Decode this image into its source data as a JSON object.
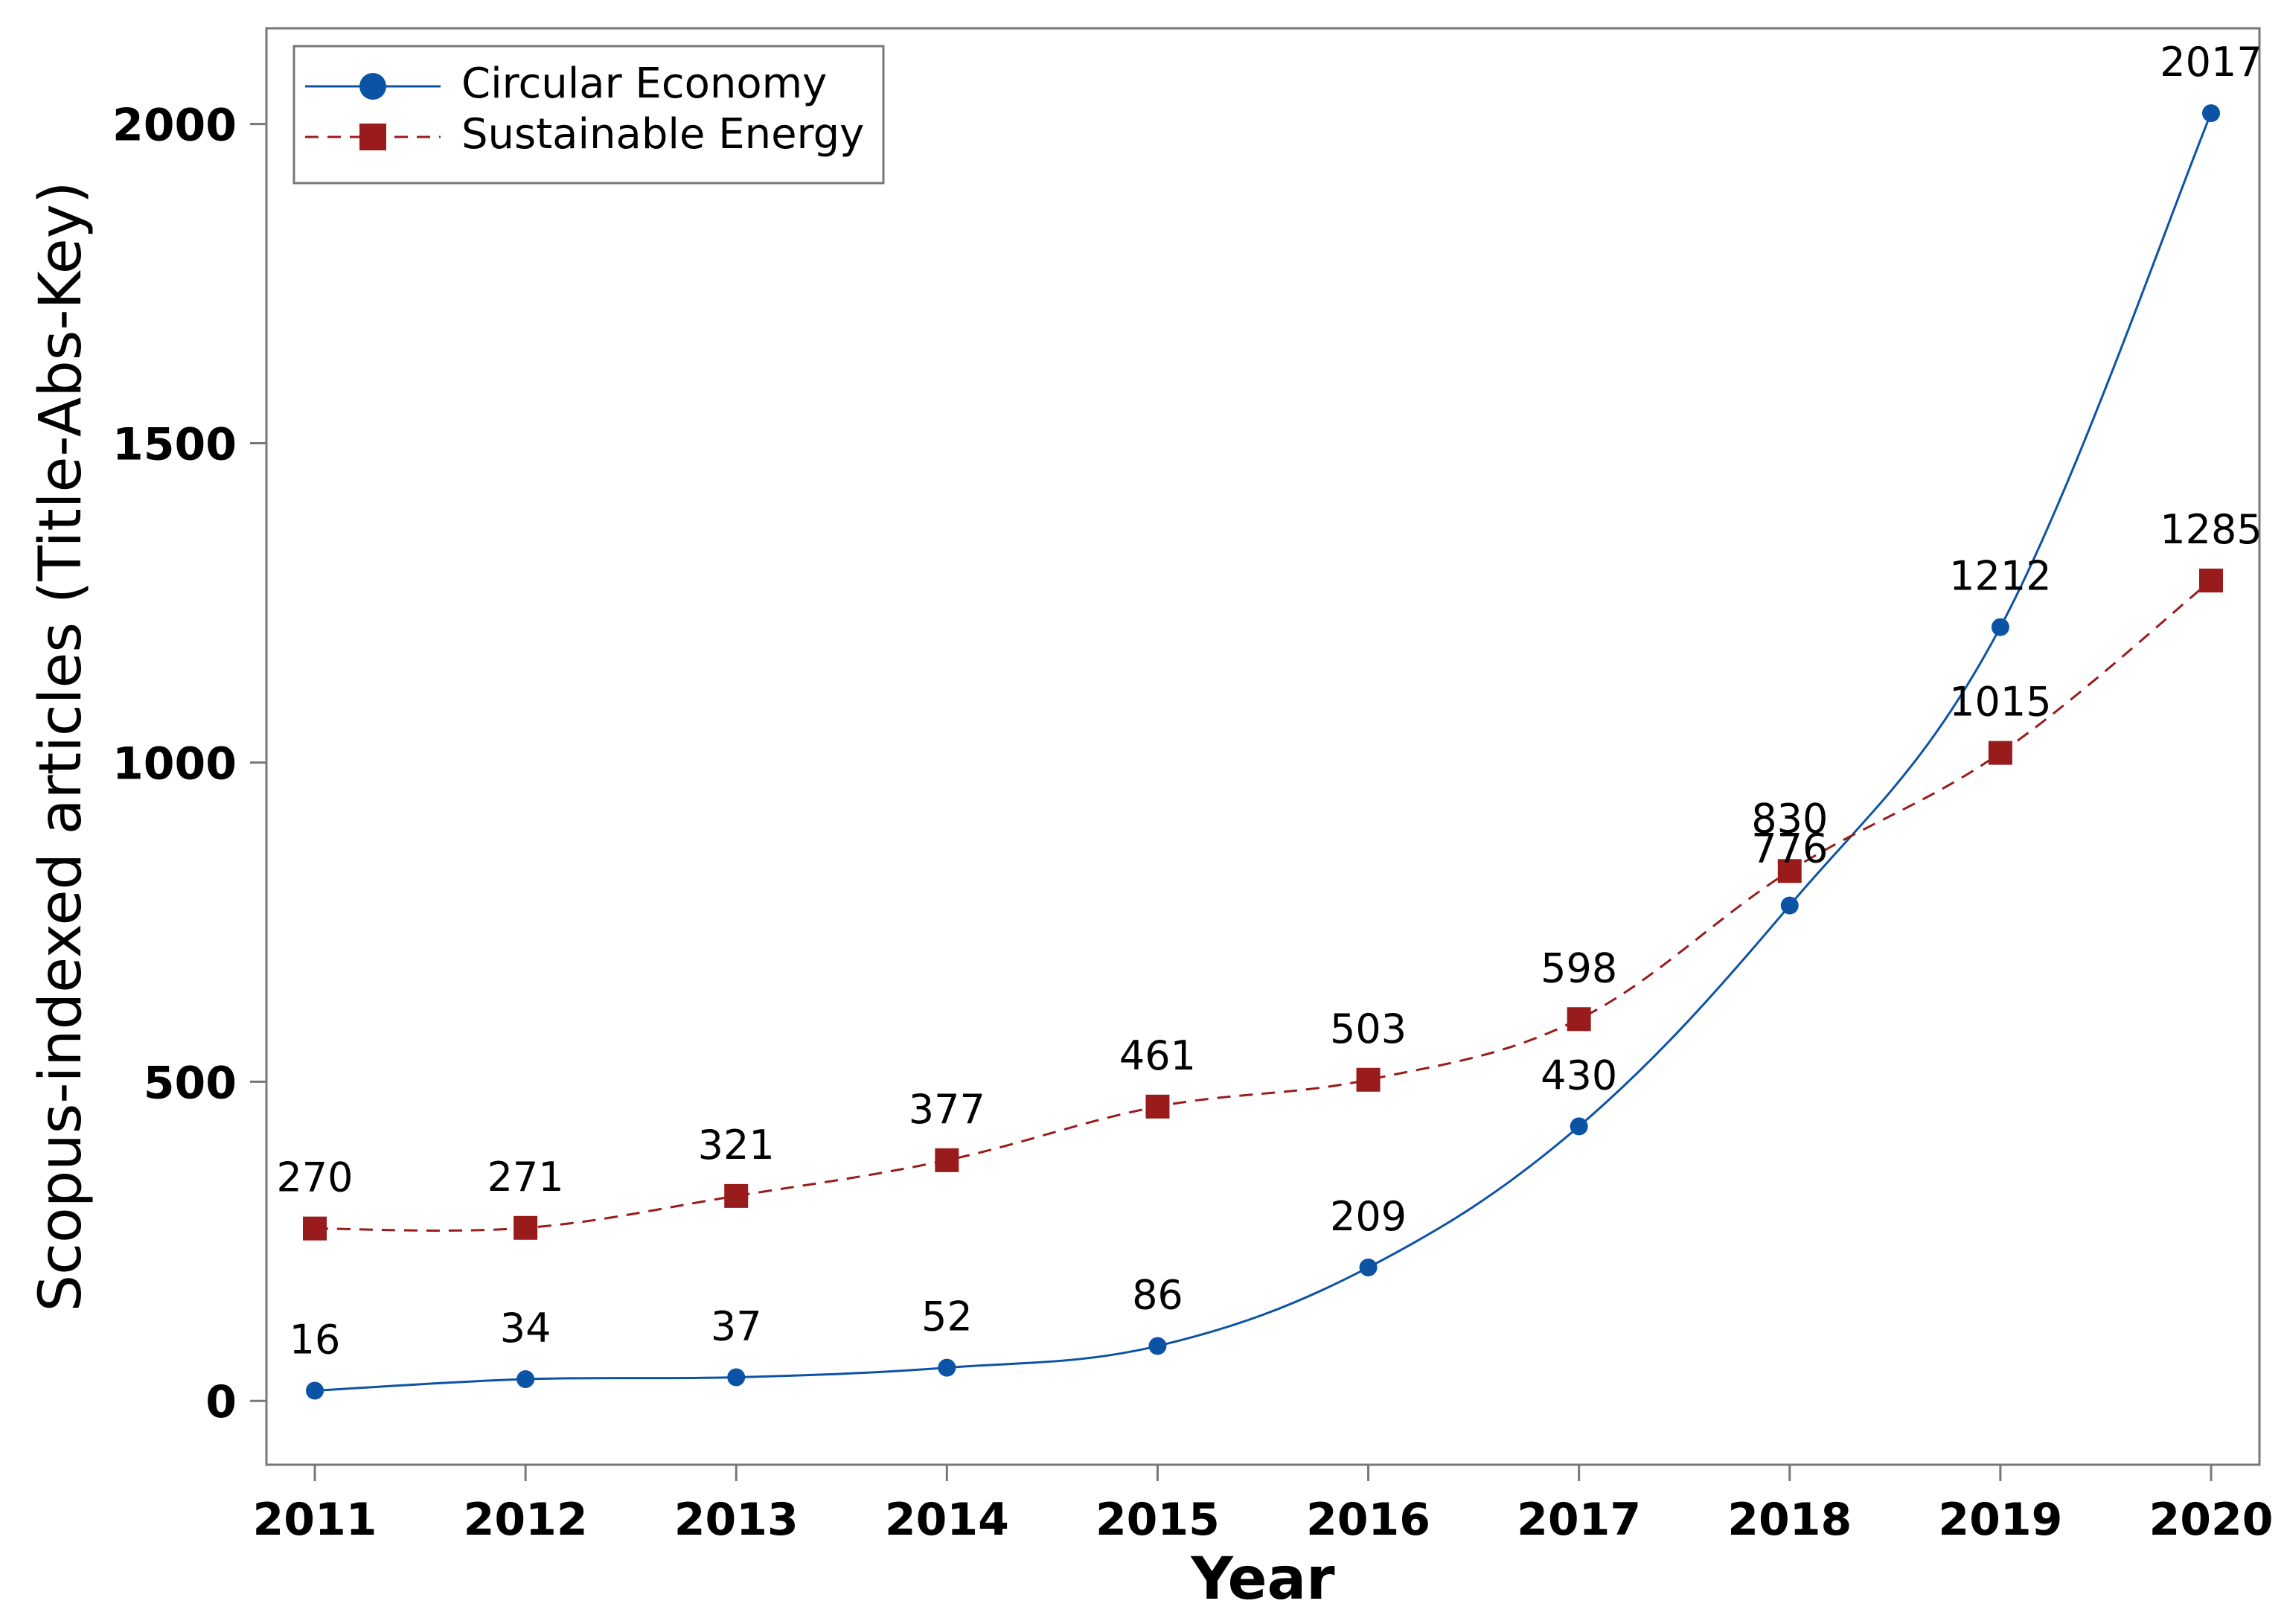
{
  "chart_data": {
    "type": "line",
    "title": "",
    "xlabel": "Year",
    "ylabel": "Scopus-indexed articles (Title-Abs-Key)",
    "categories": [
      "2011",
      "2012",
      "2013",
      "2014",
      "2015",
      "2016",
      "2017",
      "2018",
      "2019",
      "2020"
    ],
    "y_ticks": [
      0,
      500,
      1000,
      1500,
      2000
    ],
    "ylim": [
      -100,
      2150
    ],
    "grid": false,
    "legend_position": "top-left",
    "series": [
      {
        "name": "Circular Economy",
        "values": [
          16,
          34,
          37,
          52,
          86,
          209,
          430,
          776,
          1212,
          2017
        ],
        "color": "#0d53a5",
        "line_style": "solid",
        "marker": "circle"
      },
      {
        "name": "Sustainable Energy",
        "values": [
          270,
          271,
          321,
          377,
          461,
          503,
          598,
          830,
          1015,
          1285
        ],
        "color": "#9a1b1b",
        "line_style": "dashed",
        "marker": "square"
      }
    ]
  }
}
